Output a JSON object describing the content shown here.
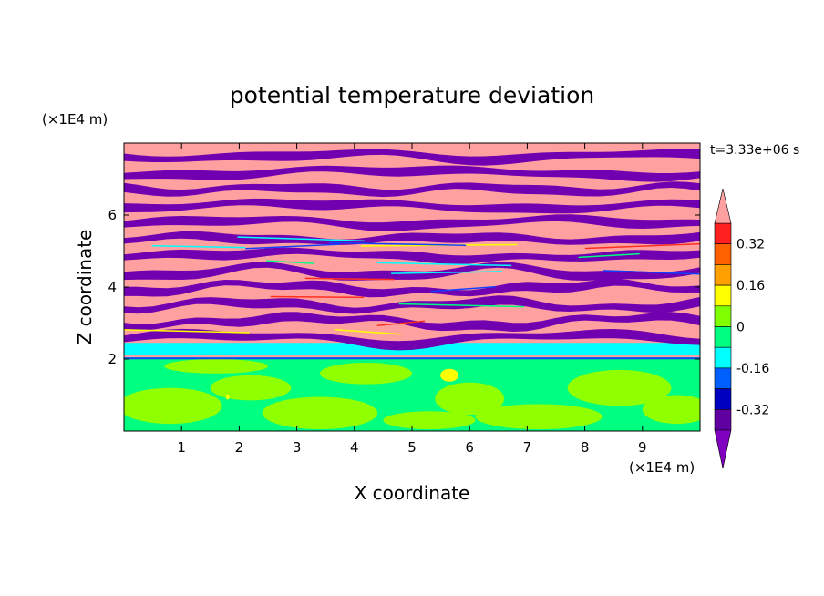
{
  "chart_data": {
    "type": "heatmap",
    "title": "potential temperature deviation",
    "xlabel": "X coordinate",
    "ylabel": "Z coordinate",
    "x_unit": "(×1E4 m)",
    "y_unit": "(×1E4 m)",
    "time_label": "t=3.33e+06 s",
    "xlim": [
      0,
      10
    ],
    "ylim": [
      0,
      8
    ],
    "x_ticks": [
      1,
      2,
      3,
      4,
      5,
      6,
      7,
      8,
      9
    ],
    "y_ticks": [
      2,
      4,
      6
    ],
    "colorbar": {
      "labels": [
        "0.32",
        "0.16",
        "0",
        "-0.16",
        "-0.32"
      ],
      "label_values": [
        0.32,
        0.16,
        0,
        -0.16,
        -0.32
      ],
      "levels_top_to_bottom": [
        0.4,
        0.32,
        0.24,
        0.16,
        0.08,
        0,
        -0.08,
        -0.16,
        -0.24,
        -0.32,
        -0.4
      ],
      "colors_top_to_bottom": [
        "#ffa0a0",
        "#ff2020",
        "#ff6000",
        "#ffa000",
        "#ffff00",
        "#80ff00",
        "#00ff80",
        "#00ffff",
        "#0060ff",
        "#0000c0",
        "#6000a0",
        "#8000c0"
      ],
      "over_color": "#ffa0a0",
      "under_color": "#8000c0"
    },
    "field_colors": {
      "positive_band": "#ffa0a0",
      "negative_band": "#7000b0",
      "lower_layer_main": "#00ff80",
      "lower_layer_patch": "#90ff00",
      "inversion_layer": "#00ffff",
      "thin_line": "#1040ff",
      "spot_warm": "#ffff00",
      "spot_hot": "#ff3020"
    }
  }
}
